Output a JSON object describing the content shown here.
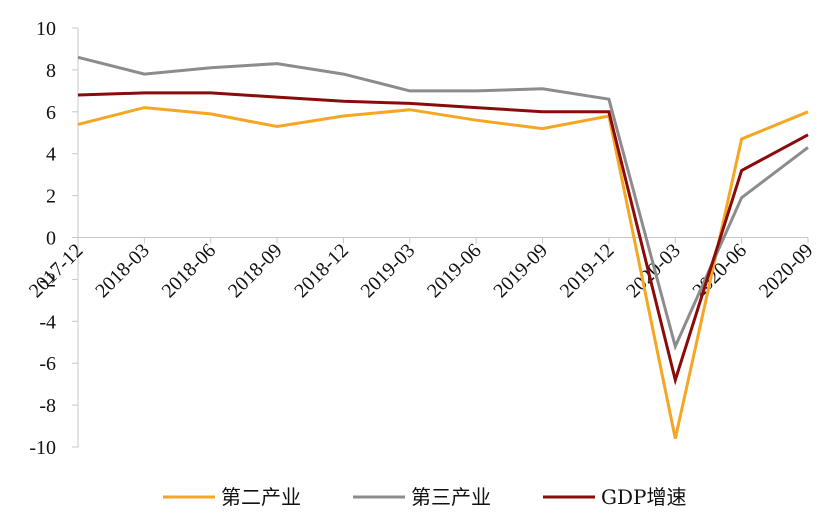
{
  "chart_data": {
    "type": "line",
    "x": [
      "2017-12",
      "2018-03",
      "2018-06",
      "2018-09",
      "2018-12",
      "2019-03",
      "2019-06",
      "2019-09",
      "2019-12",
      "2020-03",
      "2020-06",
      "2020-09"
    ],
    "series": [
      {
        "name": "第二产业",
        "color": "#F5A623",
        "values": [
          5.4,
          6.2,
          5.9,
          5.3,
          5.8,
          6.1,
          5.6,
          5.2,
          5.8,
          -9.6,
          4.7,
          6.0
        ]
      },
      {
        "name": "第三产业",
        "color": "#8C8C8C",
        "values": [
          8.6,
          7.8,
          8.1,
          8.3,
          7.8,
          7.0,
          7.0,
          7.1,
          6.6,
          -5.2,
          1.9,
          4.3
        ]
      },
      {
        "name": "GDP增速",
        "color": "#8B0A0A",
        "values": [
          6.8,
          6.9,
          6.9,
          6.7,
          6.5,
          6.4,
          6.2,
          6.0,
          6.0,
          -6.8,
          3.2,
          4.9
        ]
      }
    ],
    "ylim": [
      -10,
      10
    ],
    "yticks": [
      "10",
      "8",
      "6",
      "4",
      "2",
      "0",
      "-2",
      "-4",
      "-6",
      "-8",
      "-10"
    ],
    "grid": false,
    "legend_position": "bottom"
  }
}
